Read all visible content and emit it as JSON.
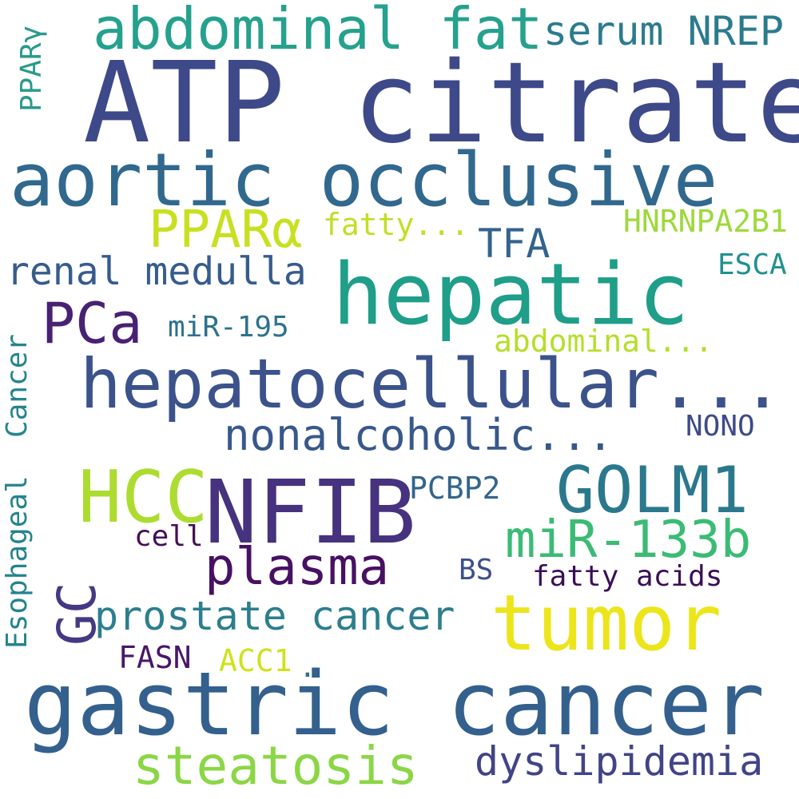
{
  "words": [
    {
      "text": "ATP citrate",
      "color": "#3e4989"
    },
    {
      "text": "aortic occlusive",
      "color": "#31688e"
    },
    {
      "text": "abdominal fat",
      "color": "#25a18e"
    },
    {
      "text": "serum NREP",
      "color": "#2b7b8e"
    },
    {
      "text": "PPARγ",
      "color": "#2a9a8c"
    },
    {
      "text": "PPARα",
      "color": "#c8e020"
    },
    {
      "text": "fatty...",
      "color": "#c2df23"
    },
    {
      "text": "HNRNPA2B1",
      "color": "#9dd93b"
    },
    {
      "text": "TFA",
      "color": "#33638d"
    },
    {
      "text": "renal medulla",
      "color": "#365c8d"
    },
    {
      "text": "hepatic",
      "color": "#1f9e89"
    },
    {
      "text": "ESCA",
      "color": "#21918c"
    },
    {
      "text": "PCa",
      "color": "#482173"
    },
    {
      "text": "miR-195",
      "color": "#2c728e"
    },
    {
      "text": "abdominal...",
      "color": "#b5de2b"
    },
    {
      "text": "hepatocellular...",
      "color": "#3b528b"
    },
    {
      "text": "nonalcoholic...",
      "color": "#38588c"
    },
    {
      "text": "NONO",
      "color": "#3e4a89"
    },
    {
      "text": "Cancer",
      "color": "#25858e"
    },
    {
      "text": "HCC",
      "color": "#addc30"
    },
    {
      "text": "NFIB",
      "color": "#46327e"
    },
    {
      "text": "GOLM1",
      "color": "#2a788e"
    },
    {
      "text": "PCBP2",
      "color": "#32658e"
    },
    {
      "text": "miR-133b",
      "color": "#3bbb75"
    },
    {
      "text": "cell",
      "color": "#440f55"
    },
    {
      "text": "plasma",
      "color": "#471163"
    },
    {
      "text": "BS",
      "color": "#3c4f8a"
    },
    {
      "text": "fatty acids",
      "color": "#3b0f56"
    },
    {
      "text": "GC",
      "color": "#443983"
    },
    {
      "text": "prostate cancer",
      "color": "#2c7e8e"
    },
    {
      "text": "tumor",
      "color": "#ecE51b"
    },
    {
      "text": "FASN",
      "color": "#481769"
    },
    {
      "text": "ACC1",
      "color": "#d0e11c"
    },
    {
      "text": "gastric cancer",
      "color": "#34608d"
    },
    {
      "text": "steatosis",
      "color": "#8bd646"
    },
    {
      "text": "dyslipidemia",
      "color": "#414487"
    },
    {
      "text": ".",
      "color": "#2c728e"
    },
    {
      "text": "Esophageal",
      "color": "#25838e"
    }
  ]
}
